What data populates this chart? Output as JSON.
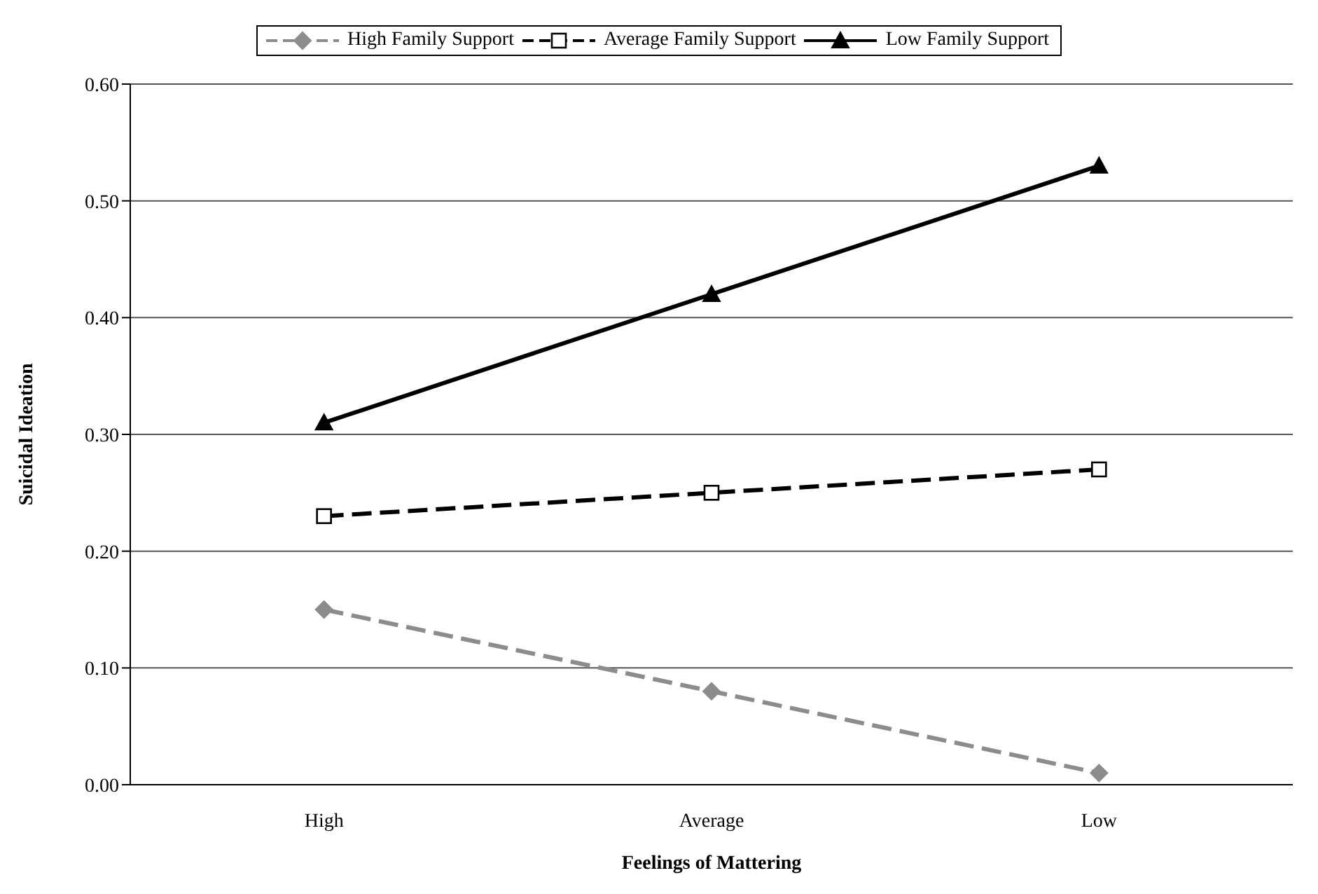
{
  "chart_data": {
    "type": "line",
    "xlabel": "Feelings of Mattering",
    "ylabel": "Suicidal Ideation",
    "categories": [
      "High",
      "Average",
      "Low"
    ],
    "series": [
      {
        "name": "High Family Support",
        "color": "#8c8c8c",
        "values": [
          0.15,
          0.08,
          0.01
        ],
        "marker": "diamond",
        "line_style": "dashed"
      },
      {
        "name": "Average Family Support",
        "color": "#000000",
        "values": [
          0.23,
          0.25,
          0.27
        ],
        "marker": "square",
        "line_style": "dashed"
      },
      {
        "name": "Low Family Support",
        "color": "#000000",
        "values": [
          0.31,
          0.42,
          0.53
        ],
        "marker": "triangle",
        "line_style": "solid"
      }
    ],
    "ylim": [
      0,
      0.6
    ],
    "yticks": [
      {
        "value": 0,
        "label": "0.00"
      },
      {
        "value": 0.1,
        "label": "0.10"
      },
      {
        "value": 0.2,
        "label": "0.20"
      },
      {
        "value": 0.3,
        "label": "0.30"
      },
      {
        "value": 0.4,
        "label": "0.40"
      },
      {
        "value": 0.5,
        "label": "0.50"
      },
      {
        "value": 0.6,
        "label": "0.60"
      }
    ],
    "grid": "y",
    "legend": "top"
  }
}
